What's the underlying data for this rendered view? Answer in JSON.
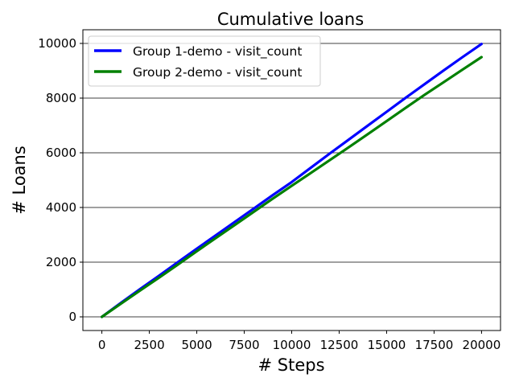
{
  "chart_data": {
    "type": "line",
    "title": "Cumulative loans",
    "xlabel": "# Steps",
    "ylabel": "# Loans",
    "xlim": [
      -1000,
      21000
    ],
    "ylim": [
      -500,
      10500
    ],
    "xticks": [
      0,
      2500,
      5000,
      7500,
      10000,
      12500,
      15000,
      17500,
      20000
    ],
    "yticks": [
      0,
      2000,
      4000,
      6000,
      8000,
      10000
    ],
    "grid": "horizontal",
    "legend_position": "upper-left",
    "series": [
      {
        "name": "Group 1-demo - visit_count",
        "color": "#0000ff",
        "x": [
          0,
          1000,
          2000,
          3000,
          4000,
          5000,
          6000,
          7000,
          8000,
          9000,
          10000,
          11000,
          12000,
          13000,
          14000,
          15000,
          16000,
          17000,
          18000,
          19000,
          20000
        ],
        "y": [
          0,
          510,
          1010,
          1500,
          2000,
          2490,
          2980,
          3470,
          3960,
          4450,
          4930,
          5450,
          5970,
          6480,
          6990,
          7500,
          8010,
          8510,
          9010,
          9500,
          9980
        ]
      },
      {
        "name": "Group 2-demo - visit_count",
        "color": "#008000",
        "x": [
          0,
          1000,
          2000,
          3000,
          4000,
          5000,
          6000,
          7000,
          8000,
          9000,
          10000,
          11000,
          12000,
          13000,
          14000,
          15000,
          16000,
          17000,
          18000,
          19000,
          20000
        ],
        "y": [
          0,
          480,
          960,
          1430,
          1910,
          2400,
          2880,
          3360,
          3840,
          4320,
          4790,
          5260,
          5730,
          6200,
          6680,
          7160,
          7640,
          8120,
          8580,
          9040,
          9500
        ]
      }
    ]
  }
}
